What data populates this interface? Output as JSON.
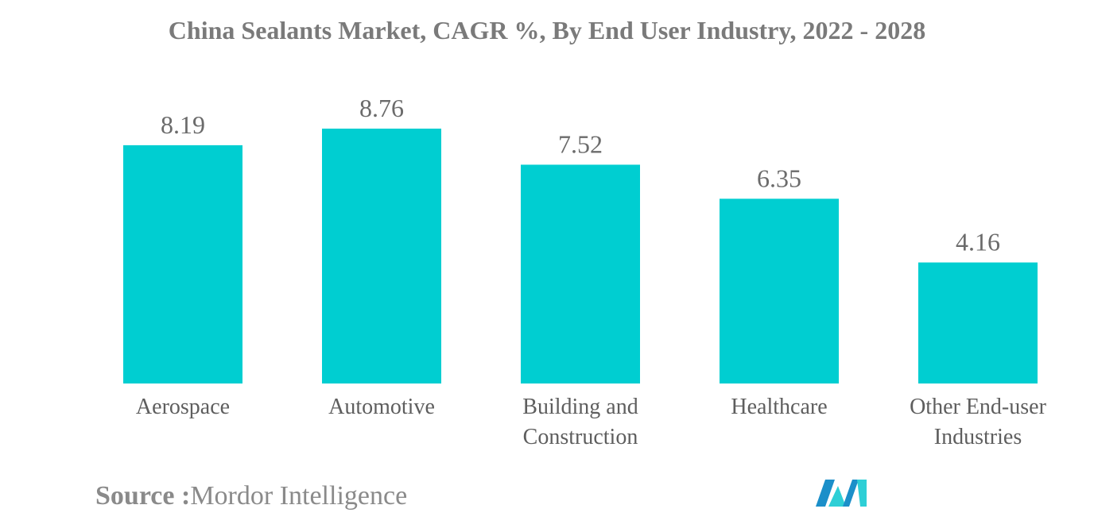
{
  "chart_data": {
    "type": "bar",
    "title": "China Sealants Market, CAGR %, By End User Industry, 2022 - 2028",
    "categories": [
      [
        "Aerospace"
      ],
      [
        "Automotive"
      ],
      [
        "Building and",
        "Construction"
      ],
      [
        "Healthcare"
      ],
      [
        "Other End-user",
        "Industries"
      ]
    ],
    "values": [
      8.19,
      8.76,
      7.52,
      6.35,
      4.16
    ],
    "value_labels": [
      "8.19",
      "8.76",
      "7.52",
      "6.35",
      "4.16"
    ],
    "xlabel": "",
    "ylabel": "",
    "ylim": [
      0,
      8.76
    ],
    "grid": false,
    "bar_color": "#00CED1"
  },
  "footer": {
    "source_label": "Source :",
    "source_value": "Mordor Intelligence"
  },
  "logo": {
    "name": "mordor-intelligence-logo",
    "colors": [
      "#1b8fc9",
      "#2ecfd6"
    ]
  }
}
